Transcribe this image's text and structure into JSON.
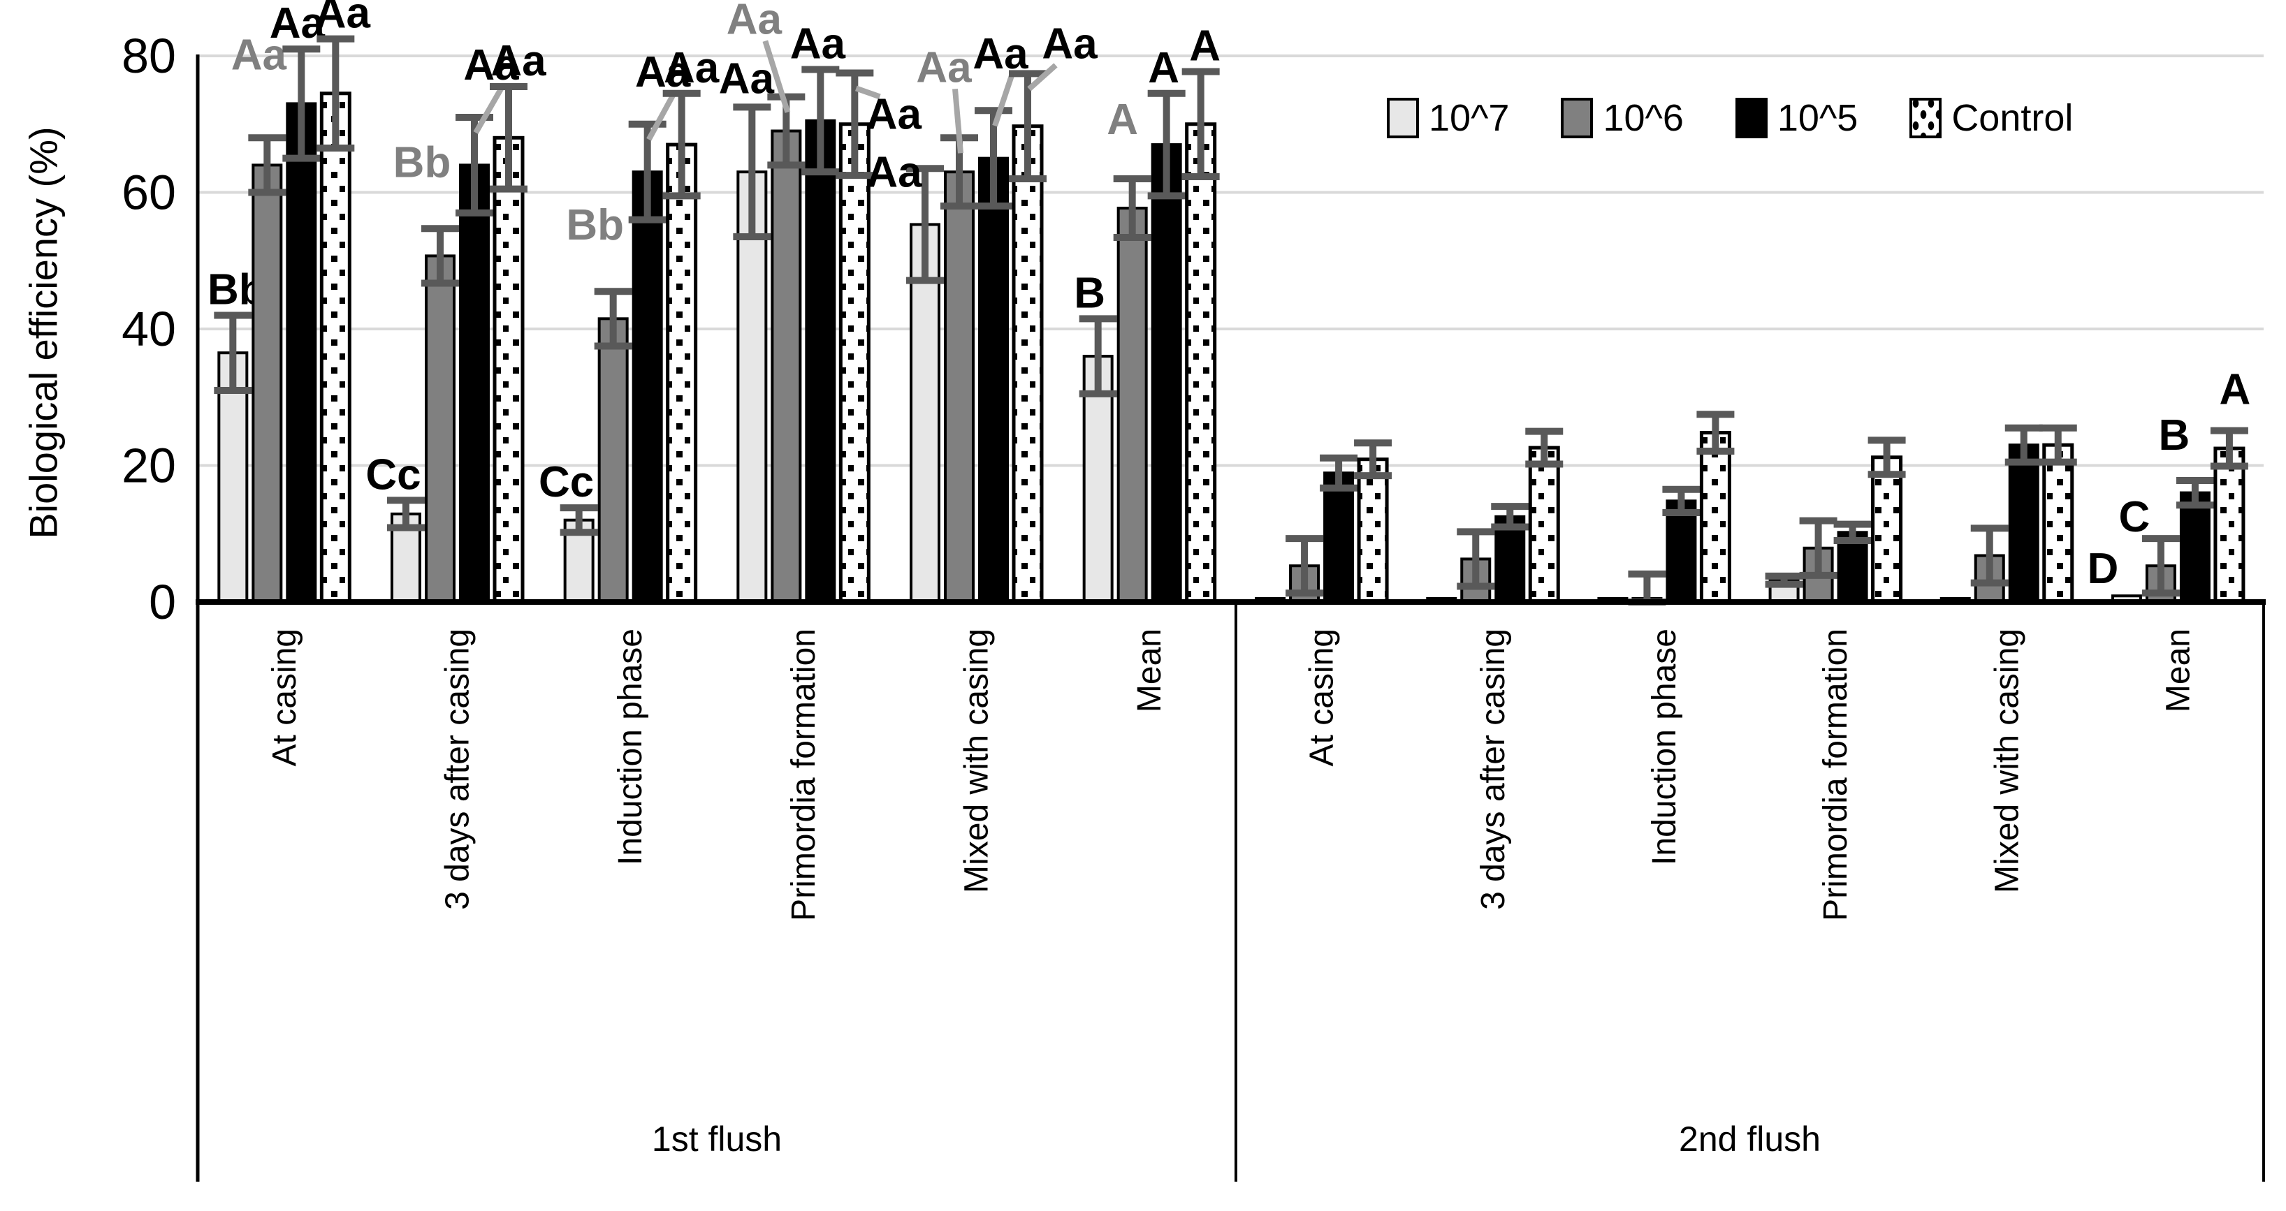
{
  "chart_data": {
    "type": "bar",
    "title": "",
    "ylabel": "Biological efficiency (%)",
    "xlabel": "",
    "ylim": [
      0,
      80
    ],
    "yticks": [
      0,
      20,
      40,
      60,
      80
    ],
    "grid": "horizontal gridlines at 20,40,60,80",
    "gridline_color": "#d9d9d9",
    "error_bar_color": "#595959",
    "annotation_gray": "#808080",
    "leader_line_color": "#a6a6a6",
    "legend_position": "top-right",
    "series_styles": [
      {
        "name": "10^7",
        "fill": "#e7e7e7",
        "border": "#000000",
        "pattern": "solid"
      },
      {
        "name": "10^6",
        "fill": "#808080",
        "border": "#000000",
        "pattern": "solid"
      },
      {
        "name": "10^5",
        "fill": "#000000",
        "border": "#000000",
        "pattern": "solid"
      },
      {
        "name": "Control",
        "fill": "#ffffff",
        "border": "#000000",
        "pattern": "dots"
      }
    ],
    "groups": [
      {
        "label": "1st flush",
        "categories": [
          "At casing",
          "3 days after casing",
          "Induction phase",
          "Primordia formation",
          "Mixed with casing",
          "Mean"
        ],
        "series": [
          {
            "name": "10^7",
            "values": [
              36.5,
              12.9,
              12.0,
              63.0,
              55.3,
              36.0
            ],
            "errors": [
              5.5,
              2.0,
              1.8,
              9.5,
              8.2,
              5.5
            ],
            "annotations": [
              {
                "t": "Bb",
                "dx": 5
              },
              {
                "t": "Cc",
                "dx": -18
              },
              {
                "t": "Cc",
                "dx": -18
              },
              {
                "t": "Aa",
                "dx": -8,
                "dy": -4
              },
              {
                "t": "Aa",
                "dx": -44,
                "dy": 42
              },
              {
                "t": "B",
                "dx": -12
              }
            ]
          },
          {
            "name": "10^6",
            "values": [
              64.0,
              50.7,
              41.5,
              69.0,
              63.0,
              57.7
            ],
            "errors": [
              4.0,
              4.0,
              4.0,
              5.0,
              5.0,
              4.3
            ],
            "annotations": [
              {
                "t": "Aa",
                "c": "g",
                "dx": -12,
                "dy": -82
              },
              {
                "t": "Bb",
                "c": "g",
                "dx": -26,
                "dy": -58
              },
              {
                "t": "Bb",
                "c": "g",
                "dx": -26,
                "dy": -58
              },
              {
                "t": "Aa",
                "c": "g",
                "dx": -46,
                "dy": -74,
                "ldr": 1
              },
              {
                "t": "Aa",
                "c": "g",
                "dx": -22,
                "dy": -64,
                "ldr": 1
              },
              {
                "t": "A",
                "c": "g",
                "dx": -14,
                "dy": -48
              }
            ]
          },
          {
            "name": "10^5",
            "values": [
              73.0,
              64.0,
              63.0,
              70.5,
              65.0,
              67.0
            ],
            "errors": [
              8.0,
              7.0,
              7.0,
              7.5,
              7.0,
              7.5
            ],
            "annotations": [
              {
                "t": "Aa",
                "dx": -6
              },
              {
                "t": "Aa",
                "dx": 24,
                "dy": -38,
                "ldr": 1
              },
              {
                "t": "Aa",
                "dx": 22,
                "dy": -38,
                "ldr": 1
              },
              {
                "t": "Aa",
                "dx": -4
              },
              {
                "t": "Aa",
                "dx": 10,
                "dy": -44,
                "ldr": 1
              },
              {
                "t": "A",
                "dx": -4
              }
            ]
          },
          {
            "name": "Control",
            "values": [
              74.5,
              68.0,
              67.0,
              70.0,
              69.7,
              70.0
            ],
            "errors": [
              8.0,
              7.5,
              7.5,
              7.5,
              7.7,
              7.7
            ],
            "annotations": [
              {
                "t": "Aa",
                "dx": 10
              },
              {
                "t": "Aa",
                "dx": 14
              },
              {
                "t": "Aa",
                "dx": 14
              },
              {
                "t": "Aa",
                "dx": 56,
                "dy": 96,
                "ldr": 1
              },
              {
                "t": "Aa",
                "dx": 60,
                "dy": -6,
                "ldr": 1
              },
              {
                "t": "A",
                "dx": 6
              }
            ]
          }
        ]
      },
      {
        "label": "2nd flush",
        "categories": [
          "At casing",
          "3 days after casing",
          "Induction phase",
          "Primordia formation",
          "Mixed with casing",
          "Mean"
        ],
        "series": [
          {
            "name": "10^7",
            "values": [
              0.2,
              0.3,
              0.3,
              3.2,
              0.2,
              0.9
            ],
            "errors": [
              null,
              null,
              null,
              0.6,
              null,
              null
            ],
            "annotations": [
              null,
              null,
              null,
              null,
              null,
              {
                "t": "D",
                "dx": -34,
                "dy": -2
              }
            ]
          },
          {
            "name": "10^6",
            "values": [
              5.3,
              6.3,
              0.2,
              7.9,
              6.8,
              5.3
            ],
            "errors": [
              4.0,
              4.0,
              3.9,
              4.0,
              4.0,
              4.0
            ],
            "annotations": [
              null,
              null,
              null,
              null,
              null,
              {
                "t": "C",
                "dx": -38,
                "dy": 6
              }
            ]
          },
          {
            "name": "10^5",
            "values": [
              18.9,
              12.5,
              14.8,
              10.2,
              23.0,
              16.0
            ],
            "errors": [
              2.2,
              1.5,
              1.7,
              1.2,
              2.5,
              1.8
            ],
            "annotations": [
              null,
              null,
              null,
              null,
              null,
              {
                "t": "B",
                "dx": -30,
                "dy": -28
              }
            ]
          },
          {
            "name": "Control",
            "values": [
              20.9,
              22.6,
              24.8,
              21.2,
              23.0,
              22.5
            ],
            "errors": [
              2.4,
              2.4,
              2.7,
              2.5,
              2.5,
              2.6
            ],
            "annotations": [
              null,
              null,
              null,
              null,
              null,
              {
                "t": "A",
                "dx": 8,
                "dy": -22
              }
            ]
          }
        ]
      }
    ]
  }
}
